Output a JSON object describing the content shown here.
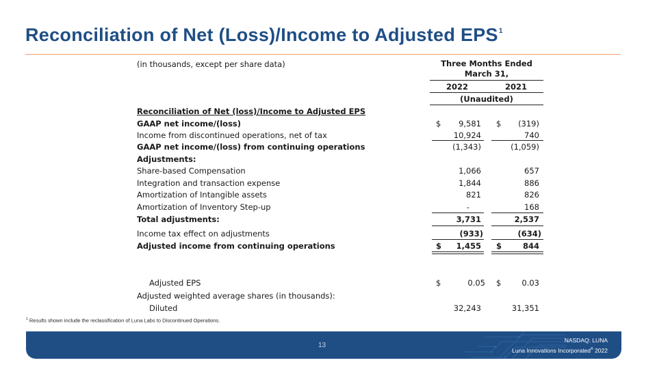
{
  "header": {
    "title": "Reconciliation of Net (Loss)/Income to Adjusted EPS",
    "title_sup": "1"
  },
  "table": {
    "units_label": "(in thousands, except per share data)",
    "period_header_1": "Three Months Ended",
    "period_header_2": "March 31,",
    "col_2022": "2022",
    "col_2021": "2021",
    "audit_label": "(Unaudited)",
    "section_title": "Reconciliation of Net (loss)/Income to Adjusted EPS",
    "rows": [
      {
        "label": "GAAP net income/(loss)",
        "d1": "$",
        "v1": "9,581",
        "d2": "$",
        "v2": "(319)"
      },
      {
        "label": "Income from discontinued operations, net of tax",
        "v1": "10,924",
        "v2": "740"
      },
      {
        "label": "GAAP net income/(loss) from continuing operations",
        "v1": "(1,343)",
        "v2": "(1,059)"
      },
      {
        "label": "Adjustments:"
      },
      {
        "label": "Share-based Compensation",
        "v1": "1,066",
        "v2": "657"
      },
      {
        "label": "Integration and transaction expense",
        "v1": "1,844",
        "v2": "886"
      },
      {
        "label": "Amortization of Intangible assets",
        "v1": "821",
        "v2": "826"
      },
      {
        "label": "Amortization of Inventory Step-up",
        "v1": "-",
        "v2": "168"
      },
      {
        "label": "Total adjustments:",
        "v1": "3,731",
        "v2": "2,537"
      },
      {
        "label": "Income tax effect on adjustments",
        "v1": "(933)",
        "v2": "(634)"
      },
      {
        "label": "Adjusted income from continuing operations",
        "d1": "$",
        "v1": "1,455",
        "d2": "$",
        "v2": "844"
      },
      {
        "label": "Adjusted EPS",
        "d1": "$",
        "v1": "0.05",
        "d2": "$",
        "v2": "0.03"
      },
      {
        "label": "Adjusted weighted average shares (in thousands):"
      },
      {
        "label": "Diluted",
        "v1": "32,243",
        "v2": "31,351"
      }
    ]
  },
  "footnote": {
    "sup": "1",
    "text": "Results shown include the reclassification of Luna Labs to Discontinued Operations."
  },
  "footer": {
    "page_number": "13",
    "exchange": "NASDAQ: LUNA",
    "company": "Luna Innovations Incorporated",
    "company_reg": "®",
    "year": "2022"
  },
  "colors": {
    "brand_blue": "#1f4e85",
    "accent_orange": "#f0a070"
  }
}
